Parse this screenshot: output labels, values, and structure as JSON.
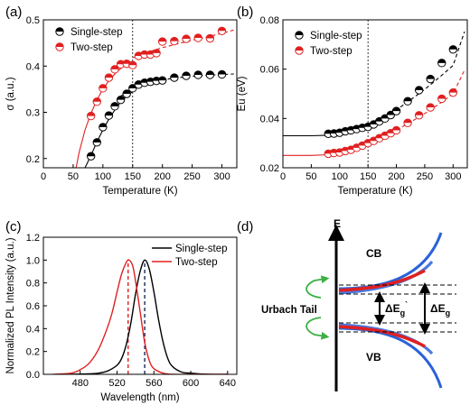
{
  "panels": {
    "a": {
      "label": "(a)",
      "type": "scatter",
      "xlabel": "Temperature (K)",
      "ylabel": "σ (a.u.)",
      "xlim": [
        0,
        325
      ],
      "ylim": [
        0.18,
        0.5
      ],
      "xticks": [
        "0",
        "50",
        "100",
        "150",
        "200",
        "250",
        "300"
      ],
      "xtick_values": [
        0,
        50,
        100,
        150,
        200,
        250,
        300
      ],
      "yticks": [
        "0.2",
        "0.3",
        "0.4",
        "0.5"
      ],
      "ytick_values": [
        0.2,
        0.3,
        0.4,
        0.5
      ],
      "vline": 150,
      "legend": [
        "Single-step",
        "Two-step"
      ],
      "series": [
        {
          "name": "Single-step",
          "color": "#000000",
          "x": [
            80,
            90,
            100,
            110,
            120,
            130,
            140,
            150,
            160,
            170,
            180,
            190,
            200,
            220,
            240,
            260,
            280,
            300
          ],
          "y": [
            0.205,
            0.235,
            0.268,
            0.293,
            0.313,
            0.327,
            0.34,
            0.352,
            0.36,
            0.364,
            0.366,
            0.368,
            0.369,
            0.375,
            0.379,
            0.381,
            0.381,
            0.382
          ]
        },
        {
          "name": "Two-step",
          "color": "#e02020",
          "x": [
            80,
            90,
            100,
            110,
            120,
            130,
            140,
            150,
            160,
            170,
            180,
            190,
            200,
            220,
            240,
            260,
            280,
            300
          ],
          "y": [
            0.292,
            0.323,
            0.352,
            0.375,
            0.393,
            0.404,
            0.405,
            0.402,
            0.422,
            0.425,
            0.425,
            0.428,
            0.453,
            0.454,
            0.459,
            0.461,
            0.46,
            0.476
          ]
        }
      ],
      "fits": [
        {
          "color": "#e02020",
          "style": "solid",
          "x": [
            55,
            60,
            70,
            80,
            90,
            100,
            110,
            120,
            130,
            140,
            150
          ],
          "y": [
            0.18,
            0.213,
            0.262,
            0.298,
            0.327,
            0.35,
            0.368,
            0.383,
            0.395,
            0.404,
            0.41
          ]
        },
        {
          "color": "#e02020",
          "style": "dashed",
          "x": [
            150,
            175,
            200,
            225,
            250,
            275,
            300,
            320
          ],
          "y": [
            0.418,
            0.43,
            0.44,
            0.448,
            0.456,
            0.463,
            0.471,
            0.478
          ]
        },
        {
          "color": "#000000",
          "style": "solid",
          "x": [
            70,
            80,
            90,
            100,
            110,
            120,
            130,
            140,
            150
          ],
          "y": [
            0.18,
            0.207,
            0.236,
            0.262,
            0.285,
            0.305,
            0.322,
            0.335,
            0.345
          ]
        },
        {
          "color": "#000000",
          "style": "dashed",
          "x": [
            130,
            150,
            175,
            200,
            225,
            250,
            275,
            300,
            320
          ],
          "y": [
            0.335,
            0.352,
            0.363,
            0.37,
            0.375,
            0.378,
            0.38,
            0.382,
            0.383
          ]
        }
      ]
    },
    "b": {
      "label": "(b)",
      "type": "scatter",
      "xlabel": "Temperature (K)",
      "ylabel": "Eu (eV)",
      "xlim": [
        0,
        325
      ],
      "ylim": [
        0.02,
        0.08
      ],
      "xticks": [
        "0",
        "50",
        "100",
        "150",
        "200",
        "250",
        "300"
      ],
      "xtick_values": [
        0,
        50,
        100,
        150,
        200,
        250,
        300
      ],
      "yticks": [
        "0.02",
        "0.04",
        "0.06",
        "0.08"
      ],
      "ytick_values": [
        0.02,
        0.04,
        0.06,
        0.08
      ],
      "vline": 150,
      "legend": [
        "Single-step",
        "Two-step"
      ],
      "series": [
        {
          "name": "Single-step",
          "color": "#000000",
          "x": [
            80,
            90,
            100,
            110,
            120,
            130,
            140,
            150,
            160,
            170,
            180,
            190,
            200,
            220,
            240,
            260,
            280,
            300
          ],
          "y": [
            0.0338,
            0.0339,
            0.0342,
            0.0348,
            0.0352,
            0.0357,
            0.0362,
            0.0366,
            0.0376,
            0.0388,
            0.04,
            0.0414,
            0.043,
            0.047,
            0.0515,
            0.056,
            0.0625,
            0.068
          ]
        },
        {
          "name": "Two-step",
          "color": "#e02020",
          "x": [
            80,
            90,
            100,
            110,
            120,
            130,
            140,
            150,
            160,
            170,
            180,
            190,
            200,
            220,
            240,
            260,
            280,
            300
          ],
          "y": [
            0.0257,
            0.026,
            0.0262,
            0.0268,
            0.0273,
            0.0281,
            0.029,
            0.03,
            0.0309,
            0.032,
            0.033,
            0.034,
            0.0352,
            0.0382,
            0.0413,
            0.0445,
            0.048,
            0.0505
          ]
        }
      ],
      "fits": [
        {
          "color": "#000000",
          "style": "solid",
          "x": [
            0,
            50,
            80,
            100,
            120,
            140,
            150
          ],
          "y": [
            0.033,
            0.033,
            0.0332,
            0.0337,
            0.0345,
            0.0356,
            0.0363
          ]
        },
        {
          "color": "#000000",
          "style": "dashed",
          "x": [
            150,
            175,
            200,
            225,
            250,
            275,
            300,
            320
          ],
          "y": [
            0.0366,
            0.0398,
            0.0435,
            0.0475,
            0.0518,
            0.0565,
            0.0615,
            0.0752
          ]
        },
        {
          "color": "#e02020",
          "style": "solid",
          "x": [
            0,
            50,
            80,
            100,
            120,
            140,
            150
          ],
          "y": [
            0.025,
            0.025,
            0.0253,
            0.0259,
            0.027,
            0.0286,
            0.0296
          ]
        },
        {
          "color": "#e02020",
          "style": "dashed",
          "x": [
            150,
            175,
            200,
            225,
            250,
            275,
            300,
            320
          ],
          "y": [
            0.0298,
            0.0325,
            0.0353,
            0.0385,
            0.042,
            0.0458,
            0.05,
            0.0596
          ]
        }
      ]
    },
    "c": {
      "label": "(c)",
      "type": "line",
      "xlabel": "Wavelength (nm)",
      "ylabel": "Normalized PL Intensity (a.u.)",
      "xlim": [
        440,
        650
      ],
      "ylim": [
        0,
        1.2
      ],
      "xticks": [
        "480",
        "520",
        "560",
        "600",
        "640"
      ],
      "xtick_values": [
        480,
        520,
        560,
        600,
        640
      ],
      "yticks": [
        "0.0",
        "0.2",
        "0.4",
        "0.6",
        "0.8",
        "1.0",
        "1.2"
      ],
      "ytick_values": [
        0,
        0.2,
        0.4,
        0.6,
        0.8,
        1.0,
        1.2
      ],
      "peaks": [
        {
          "x": 550,
          "color": "#1a2a5a"
        },
        {
          "x": 532,
          "color": "#e02020"
        }
      ],
      "legend": [
        "Single-step",
        "Two-step"
      ],
      "series": [
        {
          "name": "Single-step",
          "color": "#000000",
          "x": [
            470,
            490,
            500,
            510,
            520,
            525,
            530,
            535,
            540,
            545,
            550,
            555,
            560,
            565,
            570,
            575,
            580,
            590,
            600,
            620,
            640
          ],
          "y": [
            0.0,
            0.005,
            0.01,
            0.03,
            0.08,
            0.14,
            0.26,
            0.45,
            0.7,
            0.9,
            1.0,
            0.92,
            0.72,
            0.48,
            0.28,
            0.14,
            0.07,
            0.02,
            0.01,
            0.0,
            0.0
          ]
        },
        {
          "name": "Two-step",
          "color": "#e02020",
          "x": [
            450,
            470,
            480,
            490,
            500,
            510,
            515,
            520,
            525,
            530,
            533,
            537,
            540,
            545,
            550,
            555,
            560,
            570,
            580,
            600,
            640
          ],
          "y": [
            0.0,
            0.01,
            0.04,
            0.1,
            0.22,
            0.42,
            0.55,
            0.72,
            0.88,
            0.98,
            1.0,
            0.95,
            0.82,
            0.55,
            0.28,
            0.12,
            0.05,
            0.01,
            0.0,
            0.0,
            0.0
          ]
        }
      ]
    },
    "d": {
      "label": "(d)",
      "e_axis": "E",
      "cb": "CB",
      "vb": "VB",
      "urbach": "Urbach Tail",
      "dEg_prime_base": "ΔE",
      "dEg_prime_sub": "g",
      "dEg_prime_sup": "`",
      "dEg_base": "ΔE",
      "dEg_sub": "g"
    }
  },
  "colors": {
    "black": "#000000",
    "red": "#e02020",
    "blue": "#2a62d8",
    "green": "#3cb043"
  }
}
